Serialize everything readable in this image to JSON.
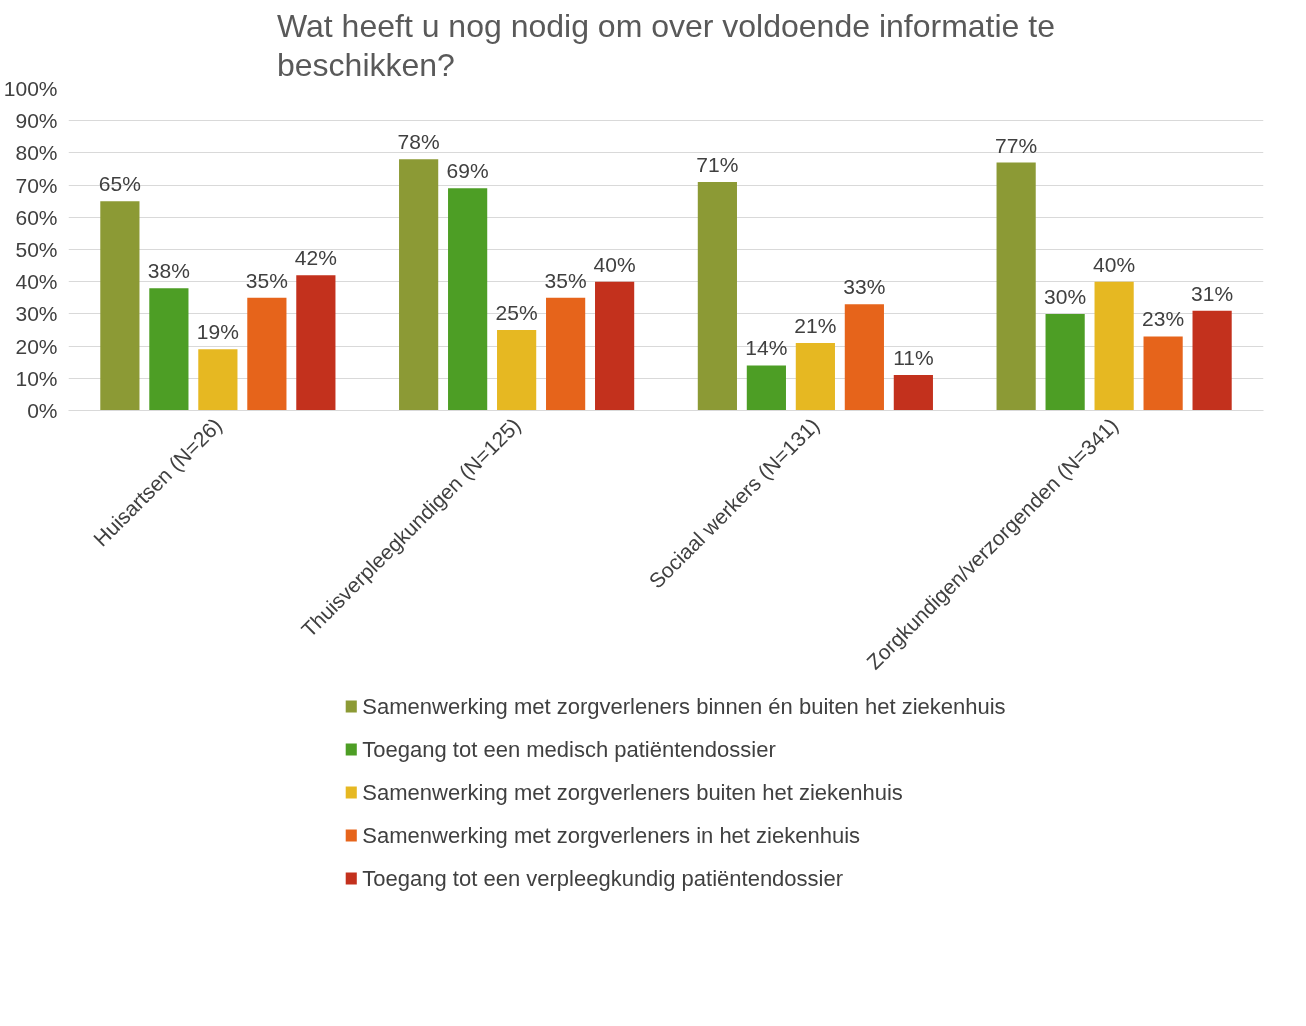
{
  "chart_data": {
    "type": "bar",
    "title": "Wat heeft u nog nodig om over voldoende informatie te beschikken?",
    "categories": [
      "Huisartsen (N=26)",
      "Thuisverpleegkundigen (N=125)",
      "Sociaal werkers (N=131)",
      "Zorgkundigen/verzorgenden (N=341)"
    ],
    "series": [
      {
        "name": "Samenwerking met zorgverleners binnen én buiten het ziekenhuis",
        "color": "#8c9a35",
        "values": [
          65,
          78,
          71,
          77
        ],
        "value_labels": [
          "65%",
          "78%",
          "71%",
          "77%"
        ]
      },
      {
        "name": "Toegang tot een medisch patiëntendossier",
        "color": "#4d9e25",
        "values": [
          38,
          69,
          14,
          30
        ],
        "value_labels": [
          "38%",
          "69%",
          "14%",
          "30%"
        ]
      },
      {
        "name": "Samenwerking met zorgverleners buiten het ziekenhuis",
        "color": "#e6b822",
        "values": [
          19,
          25,
          21,
          40
        ],
        "value_labels": [
          "19%",
          "25%",
          "21%",
          "40%"
        ]
      },
      {
        "name": "Samenwerking met zorgverleners in het ziekenhuis",
        "color": "#e6641b",
        "values": [
          35,
          35,
          33,
          23
        ],
        "value_labels": [
          "35%",
          "35%",
          "33%",
          "23%"
        ]
      },
      {
        "name": "Toegang tot een verpleegkundig patiëntendossier",
        "color": "#c3311d",
        "values": [
          42,
          40,
          11,
          31
        ],
        "value_labels": [
          "42%",
          "40%",
          "11%",
          "31%"
        ]
      }
    ],
    "ylim": [
      0,
      100
    ],
    "yticks": [
      {
        "value": 0,
        "label": "0%"
      },
      {
        "value": 10,
        "label": "10%"
      },
      {
        "value": 20,
        "label": "20%"
      },
      {
        "value": 30,
        "label": "30%"
      },
      {
        "value": 40,
        "label": "40%"
      },
      {
        "value": 50,
        "label": "50%"
      },
      {
        "value": 60,
        "label": "60%"
      },
      {
        "value": 70,
        "label": "70%"
      },
      {
        "value": 80,
        "label": "80%"
      },
      {
        "value": 90,
        "label": "90%"
      },
      {
        "value": 100,
        "label": "100%"
      }
    ],
    "grid": "y",
    "legend": "bottom"
  }
}
